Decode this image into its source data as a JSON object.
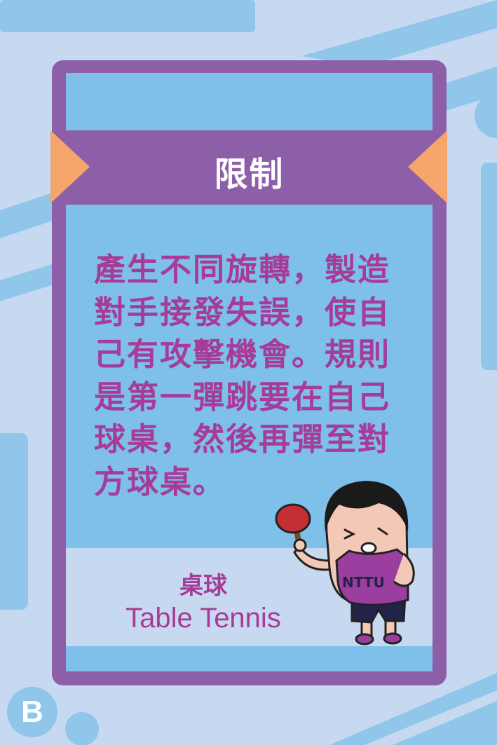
{
  "card": {
    "title": "限制",
    "body_lines": [
      "產生不同旋轉，製造",
      "對手接發失誤，使自",
      "己有攻擊機會。規則",
      "是第一彈跳要在自己",
      "球桌，然後再彈至對",
      "方球桌。"
    ],
    "label_zh": "桌球",
    "label_en": "Table Tennis",
    "shirt_text": "NTTU"
  },
  "badge": {
    "letter": "B"
  },
  "colors": {
    "background": "#c7d9f0",
    "card_frame": "#8d5fa8",
    "card_panel": "#7ec0ea",
    "label_panel": "#c7d9f0",
    "ribbon_accent": "#f6a66c",
    "text": "#a63c98",
    "title_text": "#ffffff"
  },
  "icons": [
    "ping-pong-paddle-icon",
    "player-character-illustration"
  ]
}
